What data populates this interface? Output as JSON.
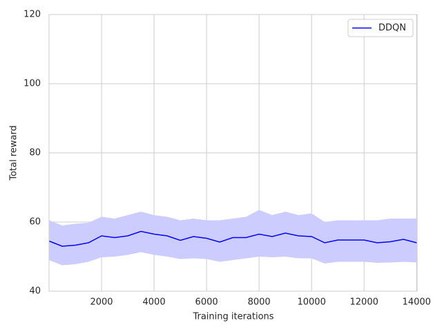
{
  "chart_data": {
    "type": "line",
    "xlabel": "Training iterations",
    "ylabel": "Total reward",
    "x": [
      0,
      500,
      1000,
      1500,
      2000,
      2500,
      3000,
      3500,
      4000,
      4500,
      5000,
      5500,
      6000,
      6500,
      7000,
      7500,
      8000,
      8500,
      9000,
      9500,
      10000,
      10500,
      11000,
      11500,
      12000,
      12500,
      13000,
      13500,
      14000
    ],
    "series": [
      {
        "name": "DDQN",
        "color": "#0000ff",
        "band_color": "#ccccff",
        "values": [
          54.5,
          53,
          53.3,
          54,
          56,
          55.5,
          56,
          57.3,
          56.5,
          56,
          54.7,
          55.8,
          55.3,
          54.2,
          55.5,
          55.5,
          56.5,
          55.8,
          56.8,
          56,
          55.8,
          54,
          54.8,
          54.8,
          54.8,
          54,
          54.3,
          55,
          54
        ],
        "upper": [
          60.5,
          59,
          59.5,
          59.8,
          61.5,
          61,
          62,
          63,
          62,
          61.5,
          60.5,
          61,
          60.5,
          60.5,
          61,
          61.5,
          63.5,
          62,
          63,
          62,
          62.5,
          60,
          60.5,
          60.5,
          60.5,
          60.5,
          61,
          61,
          61
        ],
        "lower": [
          49,
          47.5,
          47.8,
          48.5,
          49.8,
          50,
          50.5,
          51.3,
          50.5,
          50,
          49.3,
          49.5,
          49.3,
          48.5,
          49,
          49.5,
          50,
          49.8,
          50,
          49.5,
          49.5,
          48,
          48.5,
          48.5,
          48.5,
          48.2,
          48.3,
          48.5,
          48.3
        ]
      }
    ],
    "xlim": [
      0,
      14020
    ],
    "ylim": [
      40,
      120
    ],
    "xticks": [
      2000,
      4000,
      6000,
      8000,
      10000,
      12000,
      14000
    ],
    "yticks": [
      40,
      60,
      80,
      100,
      120
    ],
    "grid": true,
    "legend": "upper right"
  }
}
